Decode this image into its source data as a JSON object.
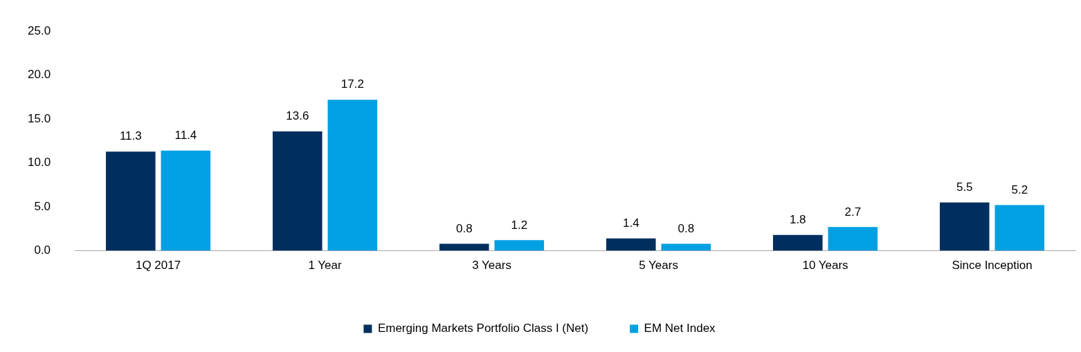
{
  "chart_data": {
    "type": "bar",
    "categories": [
      "1Q 2017",
      "1 Year",
      "3 Years",
      "5 Years",
      "10 Years",
      "Since Inception"
    ],
    "series": [
      {
        "name": "Emerging Markets Portfolio Class I (Net)",
        "color": "#002f5f",
        "values": [
          11.3,
          13.6,
          0.8,
          1.4,
          1.8,
          5.5
        ]
      },
      {
        "name": "EM Net Index",
        "color": "#00a0e2",
        "values": [
          11.4,
          17.2,
          1.2,
          0.8,
          2.7,
          5.2
        ]
      }
    ],
    "ylim": [
      0,
      25
    ],
    "yticks": [
      {
        "value": 0,
        "label": "0.0"
      },
      {
        "value": 5,
        "label": "5.0"
      },
      {
        "value": 10,
        "label": "10.0"
      },
      {
        "value": 15,
        "label": "15.0"
      },
      {
        "value": 20,
        "label": "20.0"
      },
      {
        "value": 25,
        "label": "25.0"
      }
    ],
    "grid": false,
    "legend": "bottom",
    "data_labels": true
  }
}
